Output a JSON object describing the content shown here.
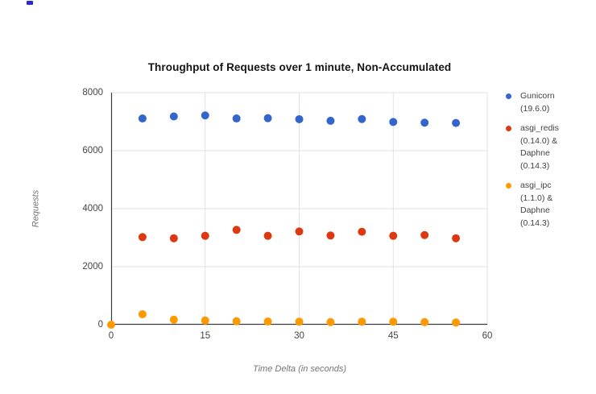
{
  "page": {
    "background": "#ffffff"
  },
  "artifact": {
    "description": "tiny-blue-mark-top-left",
    "color": "#2a2ad4"
  },
  "colors": {
    "grid": "#e1e1e1",
    "axis": "#3c3c3c",
    "tick_text": "#444444",
    "axis_title_text": "#757575",
    "legend_text": "#424242",
    "title_text": "#151515"
  },
  "chart_data": {
    "type": "scatter",
    "title": "Throughput of Requests over 1 minute, Non-Accumulated",
    "xlabel": "Time Delta (in seconds)",
    "ylabel": "Requests",
    "xlim": [
      0,
      60
    ],
    "ylim": [
      0,
      8000
    ],
    "x_ticks": [
      0,
      15,
      30,
      45,
      60
    ],
    "y_ticks": [
      0,
      2000,
      4000,
      6000,
      8000
    ],
    "grid": true,
    "legend_position": "right",
    "marker_radius_px": 5,
    "series": [
      {
        "name": "Gunicorn (19.6.0)",
        "color": "#3366CC",
        "points": [
          [
            5,
            7110
          ],
          [
            10,
            7180
          ],
          [
            15,
            7215
          ],
          [
            20,
            7110
          ],
          [
            25,
            7120
          ],
          [
            30,
            7085
          ],
          [
            35,
            7030
          ],
          [
            40,
            7090
          ],
          [
            45,
            6990
          ],
          [
            50,
            6965
          ],
          [
            55,
            6955
          ]
        ]
      },
      {
        "name": "asgi_redis (0.14.0) & Daphne (0.14.3)",
        "color": "#DC3912",
        "points": [
          [
            5,
            3020
          ],
          [
            10,
            2980
          ],
          [
            15,
            3065
          ],
          [
            20,
            3270
          ],
          [
            25,
            3065
          ],
          [
            30,
            3215
          ],
          [
            35,
            3075
          ],
          [
            40,
            3205
          ],
          [
            45,
            3065
          ],
          [
            50,
            3090
          ],
          [
            55,
            2980
          ]
        ]
      },
      {
        "name": "asgi_ipc (1.1.0) & Daphne (0.14.3)",
        "color": "#FF9900",
        "points": [
          [
            0,
            0
          ],
          [
            5,
            360
          ],
          [
            10,
            175
          ],
          [
            15,
            145
          ],
          [
            20,
            120
          ],
          [
            25,
            110
          ],
          [
            30,
            105
          ],
          [
            35,
            90
          ],
          [
            40,
            105
          ],
          [
            45,
            105
          ],
          [
            50,
            90
          ],
          [
            55,
            75
          ]
        ]
      }
    ]
  }
}
